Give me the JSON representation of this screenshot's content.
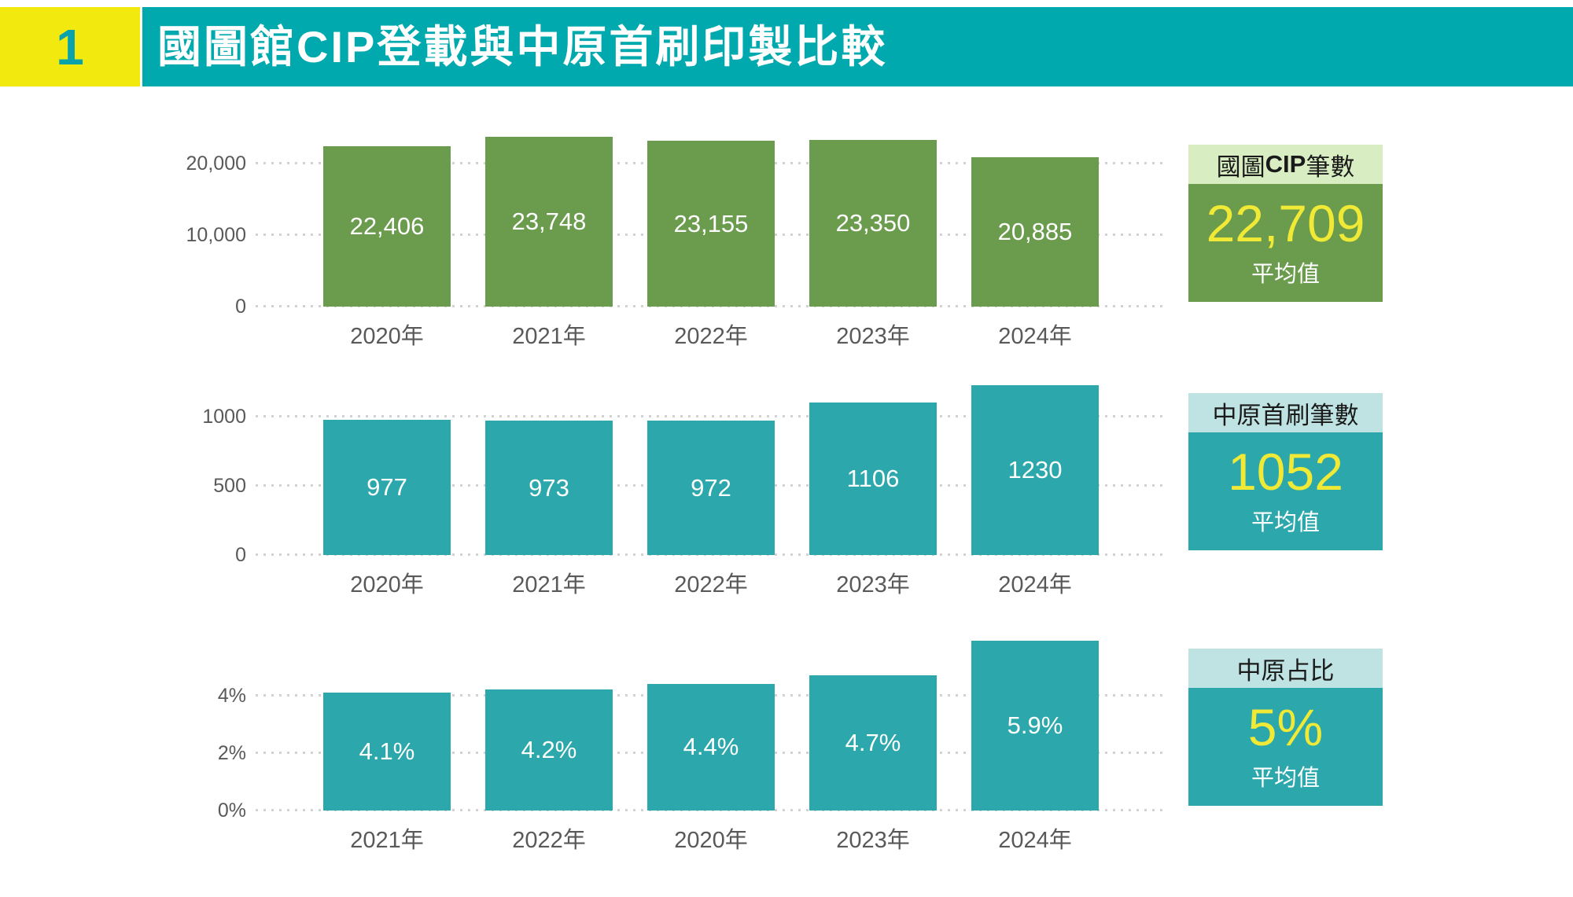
{
  "header": {
    "index": "1",
    "title": "國圖館CIP登載與中原首刷印製比較"
  },
  "colors": {
    "header_teal": "#00a9ae",
    "badge_yellow": "#f2ea0e",
    "badge_number_teal": "#0aa2ab",
    "green_bar": "#6b9c4e",
    "green_light": "#d8edc2",
    "teal_bar": "#2ca8ac",
    "teal_light": "#bfe3e3",
    "accent_yellow": "#f0e935",
    "axis_text_gray": "#595959",
    "grid_gray": "#d2d2d2",
    "bar_label_white": "#ffffff",
    "panel_header_text_black": "#1a1a1a"
  },
  "chart_data": [
    {
      "type": "bar",
      "theme": "green",
      "title": "國圖CIP筆數",
      "title_parts": {
        "pre": "國圖",
        "bold": "CIP",
        "post": "筆數"
      },
      "categories": [
        "2020年",
        "2021年",
        "2022年",
        "2023年",
        "2024年"
      ],
      "values": [
        22406,
        23748,
        23155,
        23350,
        20885
      ],
      "value_labels": [
        "22,406",
        "23,748",
        "23,155",
        "23,350",
        "20,885"
      ],
      "yticks": [
        {
          "value": 0,
          "label": "0"
        },
        {
          "value": 10000,
          "label": "10,000"
        },
        {
          "value": 20000,
          "label": "20,000"
        }
      ],
      "ylim": [
        0,
        26400
      ],
      "grid": "dotted",
      "average_value": 22709,
      "average_label": "22,709",
      "average_caption": "平均值"
    },
    {
      "type": "bar",
      "theme": "teal",
      "title": "中原首刷筆數",
      "title_parts": {
        "pre": "中原首刷筆數",
        "bold": "",
        "post": ""
      },
      "categories": [
        "2020年",
        "2021年",
        "2022年",
        "2023年",
        "2024年"
      ],
      "values": [
        977,
        973,
        972,
        1106,
        1230
      ],
      "value_labels": [
        "977",
        "973",
        "972",
        "1106",
        "1230"
      ],
      "yticks": [
        {
          "value": 0,
          "label": "0"
        },
        {
          "value": 500,
          "label": "500"
        },
        {
          "value": 1000,
          "label": "1000"
        }
      ],
      "ylim": [
        0,
        1367
      ],
      "grid": "dotted",
      "average_value": 1052,
      "average_label": "1052",
      "average_caption": "平均值"
    },
    {
      "type": "bar",
      "theme": "teal",
      "title": "中原占比",
      "title_parts": {
        "pre": "中原占比",
        "bold": "",
        "post": ""
      },
      "categories": [
        "2021年",
        "2022年",
        "2020年",
        "2023年",
        "2024年"
      ],
      "values": [
        4.1,
        4.2,
        4.4,
        4.7,
        5.9
      ],
      "value_labels": [
        "4.1%",
        "4.2%",
        "4.4%",
        "4.7%",
        "5.9%"
      ],
      "yticks": [
        {
          "value": 0,
          "label": "0%"
        },
        {
          "value": 2,
          "label": "2%"
        },
        {
          "value": 4,
          "label": "4%"
        }
      ],
      "ylim": [
        0,
        6.56
      ],
      "grid": "dotted",
      "average_value": 5,
      "average_label": "5%",
      "average_caption": "平均值"
    }
  ]
}
